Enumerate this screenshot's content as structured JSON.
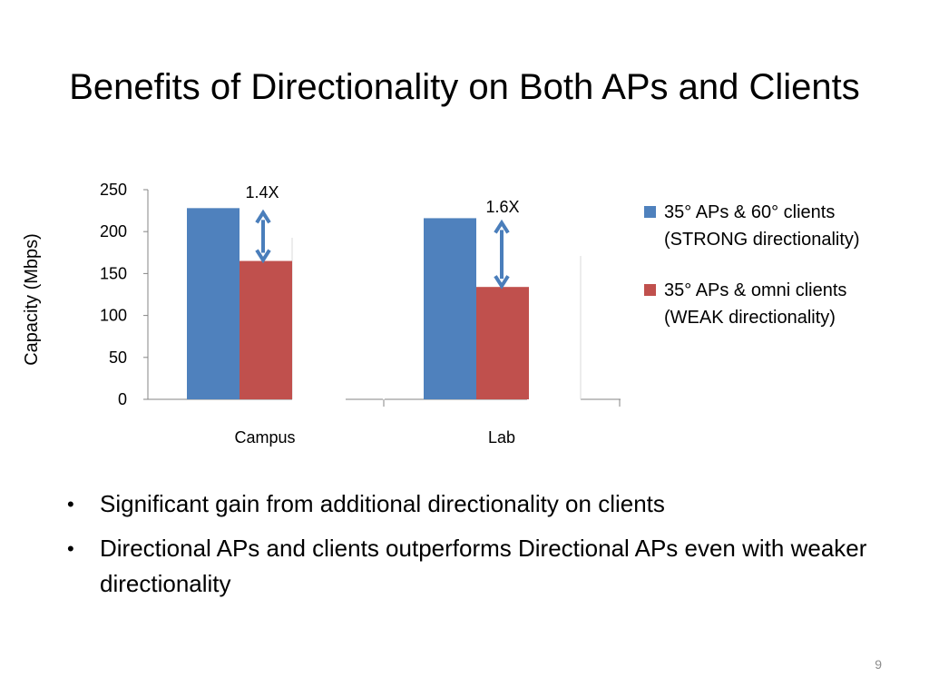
{
  "slide": {
    "title": "Benefits of Directionality on Both APs and Clients",
    "bullets": [
      "Significant gain from additional directionality on clients",
      "Directional APs and clients outperforms Directional APs even with weaker directionality"
    ],
    "page_number": "9"
  },
  "chart_data": {
    "type": "bar",
    "title": "",
    "xlabel": "",
    "ylabel": "Capacity (Mbps)",
    "categories": [
      "Campus",
      "Lab"
    ],
    "ylim": [
      0,
      250
    ],
    "yticks": [
      "0",
      "50",
      "100",
      "150",
      "200",
      "250"
    ],
    "grid": false,
    "legend_position": "right",
    "series": [
      {
        "name": "35° APs & 60° clients (STRONG directionality)",
        "legend_lines": [
          "35° APs & 60° clients",
          "(STRONG directionality)"
        ],
        "color": "#4f81bd",
        "values": [
          228,
          216
        ]
      },
      {
        "name": "35° APs & omni clients (WEAK directionality)",
        "legend_lines": [
          "35° APs & omni clients",
          "(WEAK directionality)"
        ],
        "color": "#c0504d",
        "values": [
          165,
          134
        ]
      }
    ],
    "annotations": [
      {
        "category": "Campus",
        "text": "1.4X"
      },
      {
        "category": "Lab",
        "text": "1.6X"
      }
    ],
    "arrow_color": "#4a7ebb"
  }
}
